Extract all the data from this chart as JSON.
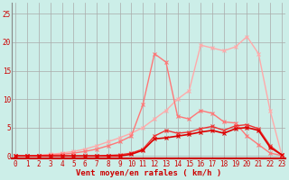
{
  "background_color": "#cceee8",
  "grid_color": "#aaaaaa",
  "xlabel": "Vent moyen/en rafales ( km/h )",
  "xlabel_color": "#cc0000",
  "xlabel_fontsize": 6.5,
  "tick_color": "#cc0000",
  "tick_fontsize": 5.5,
  "x_ticks": [
    0,
    1,
    2,
    3,
    4,
    5,
    6,
    7,
    8,
    9,
    10,
    11,
    12,
    13,
    14,
    15,
    16,
    17,
    18,
    19,
    20,
    21,
    22,
    23
  ],
  "y_ticks": [
    0,
    5,
    10,
    15,
    20,
    25
  ],
  "ylim": [
    -0.5,
    27
  ],
  "xlim": [
    -0.3,
    23.3
  ],
  "line_dark": {
    "y": [
      0,
      0,
      0,
      0,
      0,
      0,
      0,
      0,
      0,
      0,
      0.3,
      1.0,
      3.0,
      3.2,
      3.5,
      3.8,
      4.2,
      4.5,
      4.0,
      4.8,
      5.0,
      4.5,
      1.5,
      0.2
    ],
    "color": "#dd0000",
    "linewidth": 1.2,
    "alpha": 1.0
  },
  "line_med_dark": {
    "y": [
      0,
      0,
      0,
      0,
      0,
      0,
      0,
      0,
      0.1,
      0.2,
      0.5,
      1.2,
      3.5,
      4.5,
      4.0,
      4.2,
      4.8,
      5.2,
      4.5,
      5.3,
      5.5,
      4.8,
      1.8,
      0.2
    ],
    "color": "#ee3333",
    "linewidth": 1.0,
    "alpha": 1.0
  },
  "line_med_light": {
    "y": [
      0,
      0,
      0.1,
      0.2,
      0.3,
      0.5,
      0.8,
      1.2,
      1.8,
      2.5,
      3.5,
      9.0,
      18.0,
      16.5,
      7.0,
      6.5,
      8.0,
      7.5,
      6.0,
      5.8,
      3.5,
      2.0,
      0.5,
      0.1
    ],
    "color": "#ff7777",
    "linewidth": 1.0,
    "alpha": 1.0
  },
  "line_light": {
    "y": [
      0,
      0,
      0.1,
      0.3,
      0.5,
      0.8,
      1.2,
      1.8,
      2.5,
      3.2,
      4.0,
      5.0,
      6.5,
      8.0,
      10.0,
      11.5,
      19.5,
      19.0,
      18.5,
      19.2,
      21.0,
      18.0,
      8.0,
      0.2
    ],
    "color": "#ffaaaa",
    "linewidth": 1.0,
    "alpha": 1.0
  }
}
